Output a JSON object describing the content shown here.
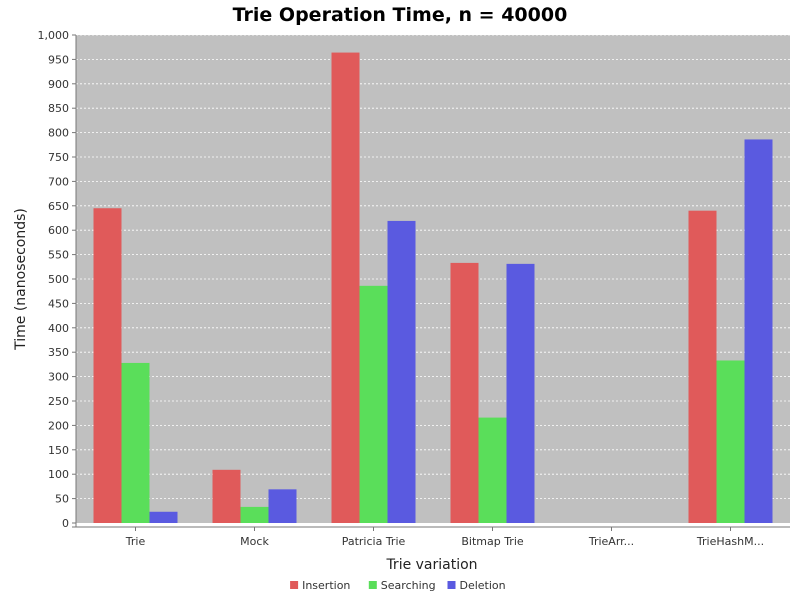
{
  "chart_data": {
    "type": "bar",
    "title": "Trie Operation Time, n = 40000",
    "xlabel": "Trie variation",
    "ylabel": "Time (nanoseconds)",
    "categories": [
      "Trie",
      "Mock",
      "Patricia Trie",
      "Bitmap Trie",
      "TrieArr...",
      "TrieHashM..."
    ],
    "series": [
      {
        "name": "Insertion",
        "color": "#e05a5a",
        "values": [
          645,
          109,
          964,
          533,
          0,
          640
        ]
      },
      {
        "name": "Searching",
        "color": "#5ade5a",
        "values": [
          328,
          33,
          486,
          216,
          0,
          333
        ]
      },
      {
        "name": "Deletion",
        "color": "#5a5ae0",
        "values": [
          23,
          69,
          619,
          531,
          0,
          786
        ]
      }
    ],
    "ylim": [
      0,
      1000
    ],
    "yticks": [
      0,
      50,
      100,
      150,
      200,
      250,
      300,
      350,
      400,
      450,
      500,
      550,
      600,
      650,
      700,
      750,
      800,
      850,
      900,
      950,
      1000
    ],
    "ytick_labels": [
      "0",
      "50",
      "100",
      "150",
      "200",
      "250",
      "300",
      "350",
      "400",
      "450",
      "500",
      "550",
      "600",
      "650",
      "700",
      "750",
      "800",
      "850",
      "900",
      "950",
      "1,000"
    ],
    "grid": true,
    "legend_position": "bottom-center",
    "plot_background": "#c0c0c0"
  }
}
